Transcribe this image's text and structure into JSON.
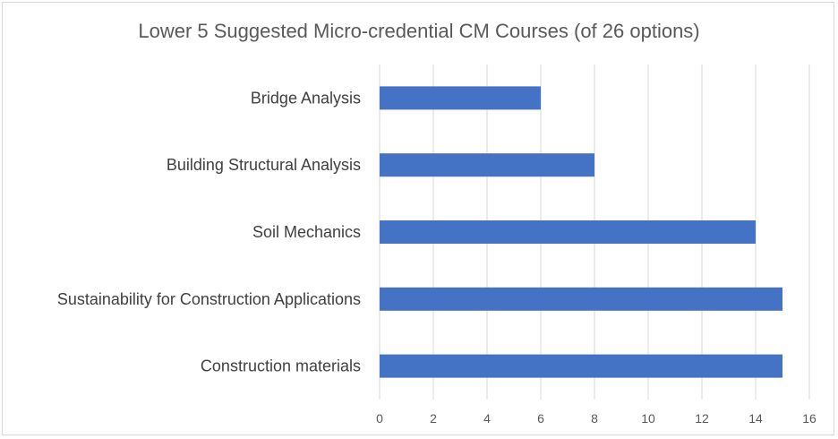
{
  "chart_data": {
    "type": "bar",
    "orientation": "horizontal",
    "title": "Lower 5 Suggested Micro-credential CM Courses (of 26 options)",
    "xlabel": "",
    "ylabel": "",
    "categories": [
      "Bridge Analysis",
      "Building Structural Analysis",
      "Soil Mechanics",
      "Sustainability for Construction Applications",
      "Construction materials"
    ],
    "values": [
      6,
      8,
      14,
      15,
      15
    ],
    "xlim": [
      0,
      16
    ],
    "xticks": [
      "0",
      "2",
      "4",
      "6",
      "8",
      "10",
      "12",
      "14",
      "16"
    ],
    "grid": "vertical",
    "legend": "none",
    "bar_color": "#4472c4"
  }
}
